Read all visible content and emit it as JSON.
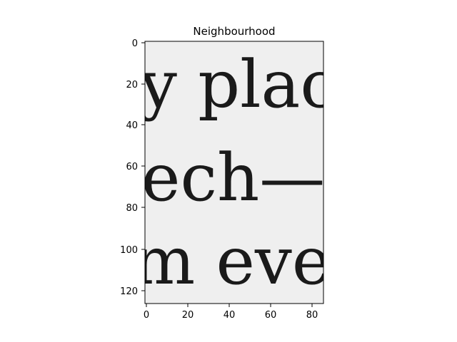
{
  "figure": {
    "title": "Neighbourhood",
    "x_ticks": [
      "0",
      "20",
      "40",
      "60",
      "80"
    ],
    "y_ticks": [
      "0",
      "20",
      "40",
      "60",
      "80",
      "100",
      "120"
    ],
    "image_text": {
      "line1": "y plac",
      "line2": "ech—",
      "line3": "m eve"
    }
  }
}
